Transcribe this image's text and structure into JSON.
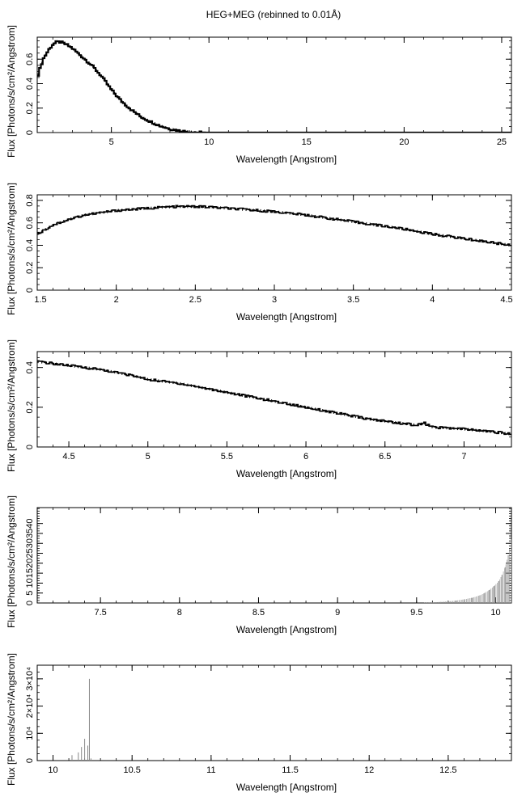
{
  "figure_title": "HEG+MEG (rebinned to 0.01Å)",
  "chart_data": [
    {
      "type": "line",
      "style": "histogram-step",
      "xlabel": "Wavelength [Angstrom]",
      "ylabel": "Flux [Photons/s/cm²/Angstrom]",
      "xlim": [
        1.2,
        25.5
      ],
      "ylim": [
        0,
        0.78
      ],
      "xticks": [
        5,
        10,
        15,
        20,
        25
      ],
      "xtick_labels": [
        "5",
        "10",
        "15",
        "20",
        "25"
      ],
      "yticks": [
        0,
        0.2,
        0.4,
        0.6
      ],
      "ytick_labels": [
        "0",
        "0.2",
        "0.4",
        "0.6"
      ],
      "series": [
        {
          "x": [
            1.2,
            1.5,
            1.8,
            2.0,
            2.2,
            2.4,
            2.7,
            3.0,
            3.5,
            4.0,
            4.5,
            5.0,
            5.5,
            6.0,
            6.5,
            7.0,
            7.5,
            8.0,
            8.5,
            9.0,
            9.3,
            10,
            12,
            15,
            20,
            25.5
          ],
          "y": [
            0.45,
            0.6,
            0.68,
            0.72,
            0.74,
            0.74,
            0.72,
            0.69,
            0.62,
            0.55,
            0.46,
            0.35,
            0.26,
            0.19,
            0.13,
            0.09,
            0.055,
            0.03,
            0.015,
            0.006,
            0.002,
            0,
            0,
            0,
            0,
            0
          ]
        }
      ]
    },
    {
      "type": "line",
      "style": "histogram-step",
      "xlabel": "Wavelength [Angstrom]",
      "ylabel": "Flux [Photons/s/cm²/Angstrom]",
      "xlim": [
        1.5,
        4.5
      ],
      "ylim": [
        0,
        0.85
      ],
      "xticks": [
        1.5,
        2,
        2.5,
        3,
        3.5,
        4,
        4.5
      ],
      "xtick_labels": [
        "1.5",
        "2",
        "2.5",
        "3",
        "3.5",
        "4",
        "4.5"
      ],
      "yticks": [
        0,
        0.2,
        0.4,
        0.6,
        0.8
      ],
      "ytick_labels": [
        "0",
        "0.2",
        "0.4",
        "0.6",
        "0.8"
      ],
      "series": [
        {
          "x": [
            1.5,
            1.6,
            1.7,
            1.8,
            1.9,
            2.0,
            2.1,
            2.2,
            2.3,
            2.4,
            2.5,
            2.6,
            2.8,
            3.0,
            3.2,
            3.4,
            3.6,
            3.8,
            4.0,
            4.2,
            4.4,
            4.5
          ],
          "y": [
            0.5,
            0.58,
            0.63,
            0.67,
            0.69,
            0.71,
            0.72,
            0.73,
            0.74,
            0.745,
            0.745,
            0.74,
            0.72,
            0.7,
            0.67,
            0.63,
            0.59,
            0.55,
            0.5,
            0.46,
            0.42,
            0.4
          ]
        }
      ]
    },
    {
      "type": "line",
      "style": "histogram-step",
      "xlabel": "Wavelength [Angstrom]",
      "ylabel": "Flux [Photons/s/cm²/Angstrom]",
      "xlim": [
        4.3,
        7.3
      ],
      "ylim": [
        0,
        0.48
      ],
      "xticks": [
        4.5,
        5,
        5.5,
        6,
        6.5,
        7
      ],
      "xtick_labels": [
        "4.5",
        "5",
        "5.5",
        "6",
        "6.5",
        "7"
      ],
      "yticks": [
        0,
        0.2,
        0.4
      ],
      "ytick_labels": [
        "0",
        "0.2",
        "0.4"
      ],
      "series": [
        {
          "x": [
            4.3,
            4.5,
            4.7,
            4.9,
            5.0,
            5.2,
            5.4,
            5.6,
            5.8,
            6.0,
            6.2,
            6.4,
            6.6,
            6.7,
            6.75,
            6.8,
            7.0,
            7.2,
            7.3
          ],
          "y": [
            0.43,
            0.41,
            0.39,
            0.36,
            0.34,
            0.32,
            0.29,
            0.26,
            0.23,
            0.2,
            0.17,
            0.14,
            0.12,
            0.11,
            0.12,
            0.1,
            0.09,
            0.075,
            0.065
          ]
        }
      ]
    },
    {
      "type": "bar",
      "style": "spikes",
      "xlabel": "Wavelength [Angstrom]",
      "ylabel": "Flux [Photons/s/cm²/Angstrom]",
      "xlim": [
        7.1,
        10.1
      ],
      "ylim": [
        0,
        48
      ],
      "xticks": [
        7.5,
        8,
        8.5,
        9,
        9.5,
        10
      ],
      "xtick_labels": [
        "7.5",
        "8",
        "8.5",
        "9",
        "9.5",
        "10"
      ],
      "yticks": [
        0,
        5,
        10,
        15,
        20,
        25,
        30,
        35,
        40
      ],
      "ytick_labels": [
        "0",
        "5",
        "10",
        "15",
        "20",
        "25",
        "30",
        "35",
        "40"
      ],
      "series": [
        {
          "x": [
            9.6,
            9.65,
            9.7,
            9.75,
            9.8,
            9.85,
            9.9,
            9.93,
            9.96,
            9.99,
            10.02,
            10.04,
            10.06,
            10.08,
            10.1
          ],
          "y": [
            0.3,
            0.5,
            0.8,
            1.2,
            1.8,
            2.6,
            3.8,
            5,
            6.5,
            8.5,
            11,
            14,
            18,
            24,
            32
          ]
        }
      ]
    },
    {
      "type": "bar",
      "style": "spikes",
      "xlabel": "Wavelength [Angstrom]",
      "ylabel": "Flux [Photons/s/cm²/Angstrom]",
      "xlim": [
        9.9,
        12.9
      ],
      "ylim": [
        0,
        35000
      ],
      "xticks": [
        10,
        10.5,
        11,
        11.5,
        12,
        12.5
      ],
      "xtick_labels": [
        "10",
        "10.5",
        "11",
        "11.5",
        "12",
        "12.5"
      ],
      "yticks": [
        0,
        10000,
        20000,
        30000
      ],
      "ytick_labels": [
        "0",
        "10⁴",
        "2×10⁴",
        "3×10⁴"
      ],
      "series": [
        {
          "x": [
            10.12,
            10.16,
            10.18,
            10.2,
            10.22,
            10.23,
            10.24
          ],
          "y": [
            2000,
            3000,
            5000,
            8000,
            5500,
            30000,
            800
          ]
        }
      ]
    }
  ]
}
